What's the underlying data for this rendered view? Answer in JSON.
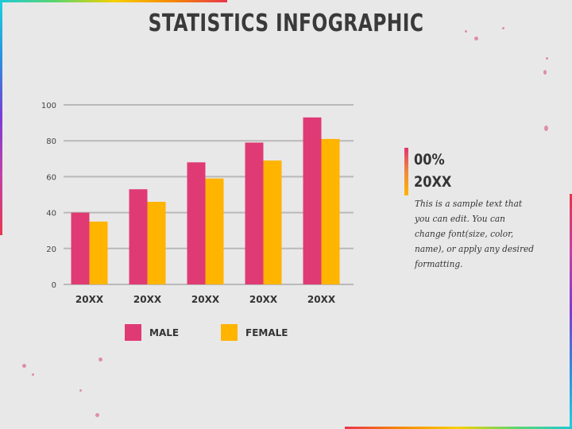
{
  "slide": {
    "title": "STATISTICS INFOGRAPHIC",
    "stat_percent": "00%",
    "stat_year": "20XX",
    "description": "This is a sample text that you can edit. You can change font(size, color, name), or apply any desired formatting."
  },
  "colors": {
    "male": "#e03a75",
    "female": "#ffb400",
    "grid": "#b9b9b9"
  },
  "chart_data": {
    "type": "bar",
    "categories": [
      "20XX",
      "20XX",
      "20XX",
      "20XX",
      "20XX"
    ],
    "series": [
      {
        "name": "MALE",
        "values": [
          40,
          53,
          68,
          79,
          93
        ]
      },
      {
        "name": "FEMALE",
        "values": [
          35,
          46,
          59,
          69,
          81
        ]
      }
    ],
    "ylim": [
      0,
      100
    ],
    "yticks": [
      0,
      20,
      40,
      60,
      80,
      100
    ],
    "grid": true,
    "legend": "bottom"
  }
}
